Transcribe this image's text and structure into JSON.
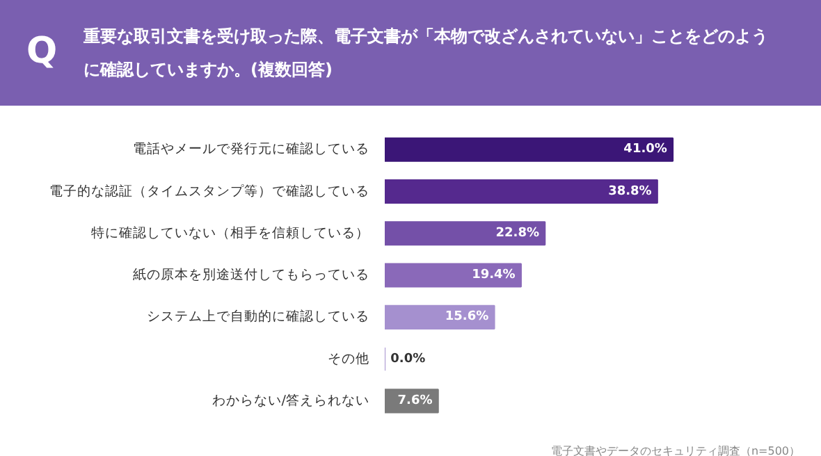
{
  "chart_data": {
    "type": "bar",
    "orientation": "horizontal",
    "title": "重要な取引文書を受け取った際、電子文書が「本物で改ざんされていない」ことをどのように確認していますか。(複数回答)",
    "categories": [
      "電話やメールで発行元に確認している",
      "電子的な認証（タイムスタンプ等）で確認している",
      "特に確認していない（相手を信頼している）",
      "紙の原本を別途送付してもらっている",
      "システム上で自動的に確認している",
      "その他",
      "わからない/答えられない"
    ],
    "values": [
      41.0,
      38.8,
      22.8,
      19.4,
      15.6,
      0.0,
      7.6
    ],
    "value_labels": [
      "41.0%",
      "38.8%",
      "22.8%",
      "19.4%",
      "15.6%",
      "0.0%",
      "7.6%"
    ],
    "colors": [
      "#3b1677",
      "#55298e",
      "#7450a8",
      "#8a69b9",
      "#a590cf",
      "#a590cf",
      "#7a7a7a"
    ],
    "annotations": [
      "Q",
      "電子文書やデータのセキュリティ調査（n=500）"
    ],
    "grid": false
  }
}
